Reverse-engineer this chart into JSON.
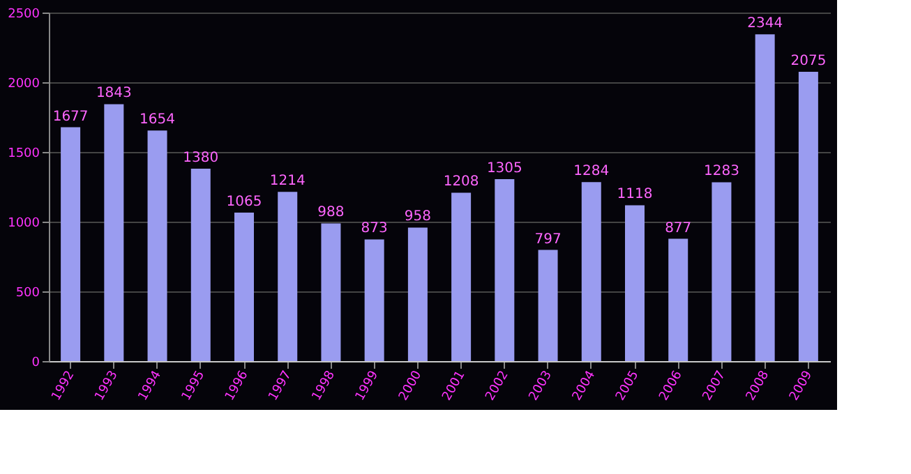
{
  "chart_data": {
    "type": "bar",
    "categories": [
      "1992",
      "1993",
      "1994",
      "1995",
      "1996",
      "1997",
      "1998",
      "1999",
      "2000",
      "2001",
      "2002",
      "2003",
      "2004",
      "2005",
      "2006",
      "2007",
      "2008",
      "2009"
    ],
    "values": [
      1677,
      1843,
      1654,
      1380,
      1065,
      1214,
      988,
      873,
      958,
      1208,
      1305,
      797,
      1284,
      1118,
      877,
      1283,
      2344,
      2075
    ],
    "color": "#9a9cf0",
    "ylim": [
      0,
      2500
    ],
    "yticks": [
      0,
      500,
      1000,
      1500,
      2000,
      2500
    ],
    "grid": "y",
    "data_labels": true
  }
}
